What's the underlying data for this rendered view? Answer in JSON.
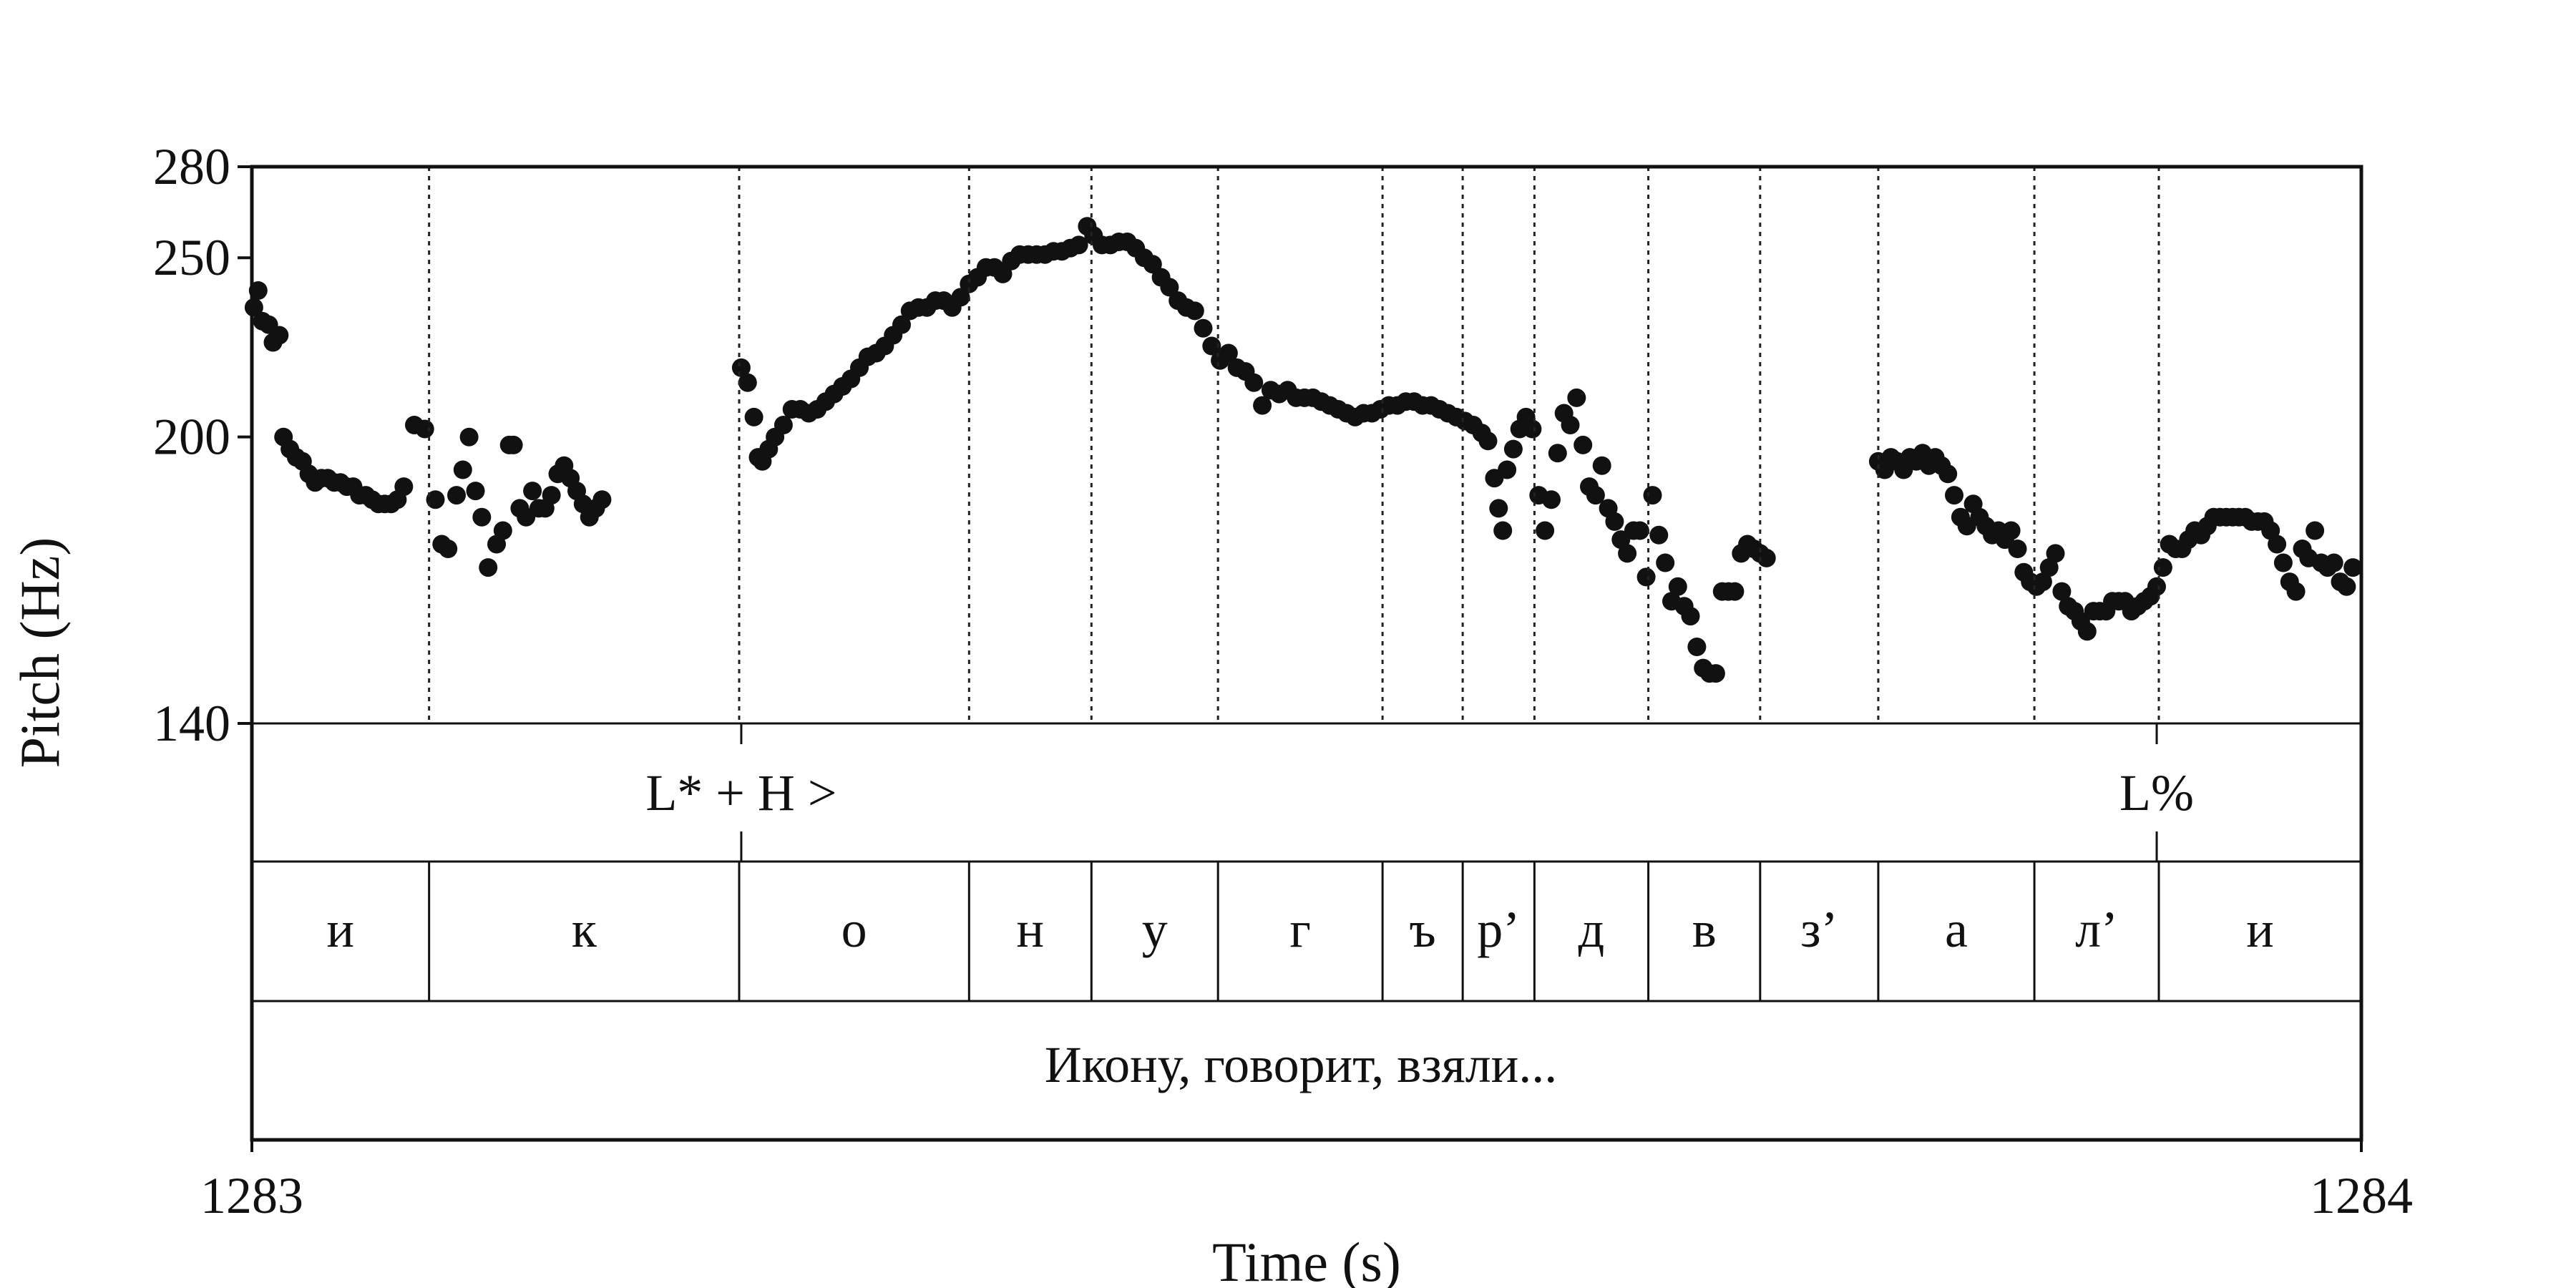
{
  "chart_data": {
    "type": "scatter",
    "xlabel": "Time (s)",
    "ylabel": "Pitch (Hz)",
    "xlim": [
      1283,
      1284
    ],
    "ylim": [
      140,
      280
    ],
    "y_scale": "log",
    "x_ticks": [
      "1283",
      "1284"
    ],
    "y_ticks": [
      280,
      250,
      200,
      140
    ],
    "grid": false,
    "point_color": "#111111",
    "tiers": {
      "tones": [
        {
          "label": "L* + H >",
          "time": 1283.232
        },
        {
          "label": "L%",
          "time": 1283.903
        }
      ],
      "segments": [
        {
          "label": "и",
          "start": 1283.0,
          "end": 1283.084
        },
        {
          "label": "к",
          "start": 1283.084,
          "end": 1283.231
        },
        {
          "label": "о",
          "start": 1283.231,
          "end": 1283.34
        },
        {
          "label": "н",
          "start": 1283.34,
          "end": 1283.398
        },
        {
          "label": "у",
          "start": 1283.398,
          "end": 1283.458
        },
        {
          "label": "г",
          "start": 1283.458,
          "end": 1283.536
        },
        {
          "label": "ъ",
          "start": 1283.536,
          "end": 1283.574
        },
        {
          "label": "р’",
          "start": 1283.574,
          "end": 1283.608
        },
        {
          "label": "д",
          "start": 1283.608,
          "end": 1283.662
        },
        {
          "label": "в",
          "start": 1283.662,
          "end": 1283.715
        },
        {
          "label": "з’",
          "start": 1283.715,
          "end": 1283.771
        },
        {
          "label": "а",
          "start": 1283.771,
          "end": 1283.845
        },
        {
          "label": "л’",
          "start": 1283.845,
          "end": 1283.904
        },
        {
          "label": "и",
          "start": 1283.904,
          "end": 1284.0
        }
      ],
      "utterance": "Икону, говорит, взяли..."
    },
    "series": [
      {
        "points": [
          [
            1283.001,
            235
          ],
          [
            1283.003,
            240
          ],
          [
            1283.005,
            231
          ],
          [
            1283.008,
            230
          ],
          [
            1283.01,
            225
          ],
          [
            1283.013,
            227
          ],
          [
            1283.015,
            200
          ],
          [
            1283.018,
            197
          ],
          [
            1283.021,
            195
          ],
          [
            1283.024,
            194
          ],
          [
            1283.027,
            191
          ],
          [
            1283.03,
            189
          ],
          [
            1283.033,
            190
          ],
          [
            1283.036,
            190
          ],
          [
            1283.039,
            189
          ],
          [
            1283.042,
            189
          ],
          [
            1283.045,
            188
          ],
          [
            1283.048,
            188
          ],
          [
            1283.051,
            186
          ],
          [
            1283.054,
            186
          ],
          [
            1283.057,
            185
          ],
          [
            1283.06,
            184
          ],
          [
            1283.063,
            184
          ],
          [
            1283.066,
            184
          ],
          [
            1283.069,
            185
          ],
          [
            1283.072,
            188
          ],
          [
            1283.077,
            203
          ],
          [
            1283.082,
            202
          ],
          [
            1283.087,
            185
          ],
          [
            1283.09,
            175
          ],
          [
            1283.093,
            174
          ],
          [
            1283.097,
            186
          ],
          [
            1283.1,
            192
          ],
          [
            1283.103,
            200
          ],
          [
            1283.106,
            187
          ],
          [
            1283.109,
            181
          ],
          [
            1283.112,
            170
          ],
          [
            1283.116,
            175
          ],
          [
            1283.119,
            178
          ],
          [
            1283.122,
            198
          ],
          [
            1283.124,
            198
          ],
          [
            1283.127,
            183
          ],
          [
            1283.13,
            181
          ],
          [
            1283.133,
            187
          ],
          [
            1283.136,
            183
          ],
          [
            1283.139,
            183
          ],
          [
            1283.142,
            186
          ],
          [
            1283.145,
            191
          ],
          [
            1283.148,
            193
          ],
          [
            1283.151,
            190
          ],
          [
            1283.154,
            187
          ],
          [
            1283.157,
            184
          ],
          [
            1283.16,
            181
          ],
          [
            1283.163,
            183
          ],
          [
            1283.166,
            185
          ]
        ]
      },
      {
        "points": [
          [
            1283.232,
            218
          ],
          [
            1283.235,
            214
          ],
          [
            1283.238,
            205
          ],
          [
            1283.24,
            195
          ],
          [
            1283.242,
            194
          ],
          [
            1283.245,
            197
          ],
          [
            1283.248,
            200
          ],
          [
            1283.252,
            203
          ],
          [
            1283.256,
            207
          ],
          [
            1283.26,
            207
          ],
          [
            1283.264,
            206
          ],
          [
            1283.268,
            207
          ],
          [
            1283.272,
            209
          ],
          [
            1283.276,
            211
          ],
          [
            1283.28,
            213
          ],
          [
            1283.284,
            215
          ],
          [
            1283.288,
            218
          ],
          [
            1283.292,
            221
          ],
          [
            1283.296,
            222
          ],
          [
            1283.3,
            224
          ],
          [
            1283.304,
            227
          ],
          [
            1283.308,
            230
          ],
          [
            1283.312,
            234
          ],
          [
            1283.316,
            235
          ],
          [
            1283.32,
            235
          ],
          [
            1283.324,
            237
          ],
          [
            1283.328,
            237
          ],
          [
            1283.332,
            235
          ],
          [
            1283.336,
            238
          ],
          [
            1283.34,
            242
          ],
          [
            1283.344,
            244
          ],
          [
            1283.348,
            247
          ],
          [
            1283.352,
            247
          ],
          [
            1283.356,
            245
          ],
          [
            1283.36,
            249
          ],
          [
            1283.364,
            251
          ],
          [
            1283.368,
            251
          ],
          [
            1283.372,
            251
          ],
          [
            1283.376,
            251
          ],
          [
            1283.38,
            252
          ],
          [
            1283.384,
            252
          ],
          [
            1283.388,
            253
          ],
          [
            1283.392,
            254
          ],
          [
            1283.396,
            260
          ],
          [
            1283.399,
            257
          ],
          [
            1283.403,
            254
          ],
          [
            1283.407,
            254
          ],
          [
            1283.411,
            255
          ],
          [
            1283.415,
            255
          ],
          [
            1283.419,
            253
          ],
          [
            1283.423,
            250
          ],
          [
            1283.427,
            248
          ],
          [
            1283.431,
            244
          ],
          [
            1283.435,
            241
          ],
          [
            1283.439,
            237
          ],
          [
            1283.443,
            235
          ],
          [
            1283.447,
            234
          ],
          [
            1283.451,
            229
          ],
          [
            1283.455,
            224
          ],
          [
            1283.459,
            220
          ],
          [
            1283.463,
            222
          ],
          [
            1283.467,
            218
          ],
          [
            1283.471,
            217
          ],
          [
            1283.475,
            214
          ],
          [
            1283.479,
            208
          ],
          [
            1283.483,
            212
          ],
          [
            1283.487,
            211
          ],
          [
            1283.491,
            212
          ],
          [
            1283.495,
            210
          ],
          [
            1283.499,
            210
          ],
          [
            1283.503,
            210
          ],
          [
            1283.507,
            209
          ],
          [
            1283.511,
            208
          ],
          [
            1283.515,
            207
          ],
          [
            1283.519,
            206
          ],
          [
            1283.523,
            205
          ],
          [
            1283.527,
            206
          ],
          [
            1283.531,
            206
          ],
          [
            1283.535,
            207
          ],
          [
            1283.539,
            208
          ],
          [
            1283.543,
            208
          ],
          [
            1283.547,
            209
          ],
          [
            1283.551,
            209
          ],
          [
            1283.555,
            208
          ],
          [
            1283.559,
            208
          ],
          [
            1283.563,
            207
          ],
          [
            1283.567,
            206
          ],
          [
            1283.571,
            205
          ],
          [
            1283.575,
            204
          ],
          [
            1283.579,
            203
          ],
          [
            1283.583,
            201
          ],
          [
            1283.586,
            199
          ],
          [
            1283.589,
            190
          ],
          [
            1283.591,
            183
          ],
          [
            1283.593,
            178
          ],
          [
            1283.595,
            192
          ],
          [
            1283.598,
            197
          ],
          [
            1283.601,
            202
          ],
          [
            1283.604,
            205
          ],
          [
            1283.607,
            202
          ],
          [
            1283.61,
            186
          ],
          [
            1283.613,
            178
          ],
          [
            1283.616,
            185
          ],
          [
            1283.619,
            196
          ],
          [
            1283.622,
            206
          ],
          [
            1283.625,
            203
          ],
          [
            1283.628,
            210
          ],
          [
            1283.631,
            198
          ],
          [
            1283.634,
            188
          ],
          [
            1283.637,
            186
          ],
          [
            1283.64,
            193
          ],
          [
            1283.643,
            183
          ],
          [
            1283.646,
            180
          ],
          [
            1283.649,
            176
          ],
          [
            1283.652,
            173
          ],
          [
            1283.655,
            178
          ],
          [
            1283.658,
            178
          ],
          [
            1283.661,
            168
          ],
          [
            1283.664,
            186
          ],
          [
            1283.667,
            177
          ],
          [
            1283.67,
            171
          ],
          [
            1283.673,
            163
          ],
          [
            1283.676,
            166
          ],
          [
            1283.679,
            162
          ],
          [
            1283.682,
            160
          ],
          [
            1283.685,
            154
          ],
          [
            1283.688,
            150
          ],
          [
            1283.691,
            149
          ],
          [
            1283.694,
            149
          ],
          [
            1283.697,
            165
          ],
          [
            1283.7,
            165
          ],
          [
            1283.703,
            165
          ],
          [
            1283.706,
            173
          ],
          [
            1283.709,
            175
          ],
          [
            1283.712,
            174
          ],
          [
            1283.715,
            173
          ],
          [
            1283.718,
            172
          ]
        ]
      },
      {
        "points": [
          [
            1283.771,
            194
          ],
          [
            1283.774,
            192
          ],
          [
            1283.777,
            195
          ],
          [
            1283.78,
            194
          ],
          [
            1283.783,
            192
          ],
          [
            1283.786,
            195
          ],
          [
            1283.789,
            194
          ],
          [
            1283.792,
            196
          ],
          [
            1283.795,
            193
          ],
          [
            1283.798,
            195
          ],
          [
            1283.801,
            193
          ],
          [
            1283.804,
            191
          ],
          [
            1283.807,
            186
          ],
          [
            1283.81,
            181
          ],
          [
            1283.813,
            179
          ],
          [
            1283.816,
            184
          ],
          [
            1283.819,
            181
          ],
          [
            1283.822,
            179
          ],
          [
            1283.825,
            177
          ],
          [
            1283.828,
            178
          ],
          [
            1283.831,
            176
          ],
          [
            1283.834,
            178
          ],
          [
            1283.837,
            174
          ],
          [
            1283.84,
            169
          ],
          [
            1283.843,
            167
          ],
          [
            1283.846,
            166
          ],
          [
            1283.849,
            167
          ],
          [
            1283.852,
            170
          ],
          [
            1283.855,
            173
          ],
          [
            1283.858,
            165
          ],
          [
            1283.861,
            162
          ],
          [
            1283.864,
            161
          ],
          [
            1283.867,
            159
          ],
          [
            1283.87,
            157
          ],
          [
            1283.873,
            161
          ],
          [
            1283.876,
            161
          ],
          [
            1283.879,
            161
          ],
          [
            1283.882,
            163
          ],
          [
            1283.885,
            163
          ],
          [
            1283.888,
            163
          ],
          [
            1283.891,
            161
          ],
          [
            1283.894,
            162
          ],
          [
            1283.897,
            163
          ],
          [
            1283.9,
            164
          ],
          [
            1283.903,
            166
          ],
          [
            1283.906,
            170
          ],
          [
            1283.909,
            175
          ],
          [
            1283.912,
            174
          ],
          [
            1283.915,
            174
          ],
          [
            1283.918,
            176
          ],
          [
            1283.921,
            178
          ],
          [
            1283.924,
            177
          ],
          [
            1283.927,
            179
          ],
          [
            1283.93,
            181
          ],
          [
            1283.933,
            181
          ],
          [
            1283.936,
            181
          ],
          [
            1283.939,
            181
          ],
          [
            1283.942,
            181
          ],
          [
            1283.945,
            181
          ],
          [
            1283.948,
            180
          ],
          [
            1283.951,
            180
          ],
          [
            1283.954,
            180
          ],
          [
            1283.957,
            178
          ],
          [
            1283.96,
            175
          ],
          [
            1283.963,
            171
          ],
          [
            1283.966,
            167
          ],
          [
            1283.969,
            165
          ],
          [
            1283.972,
            174
          ],
          [
            1283.975,
            172
          ],
          [
            1283.978,
            178
          ],
          [
            1283.981,
            171
          ],
          [
            1283.984,
            170
          ],
          [
            1283.987,
            171
          ],
          [
            1283.99,
            167
          ],
          [
            1283.993,
            166
          ],
          [
            1283.996,
            170
          ]
        ]
      }
    ]
  }
}
